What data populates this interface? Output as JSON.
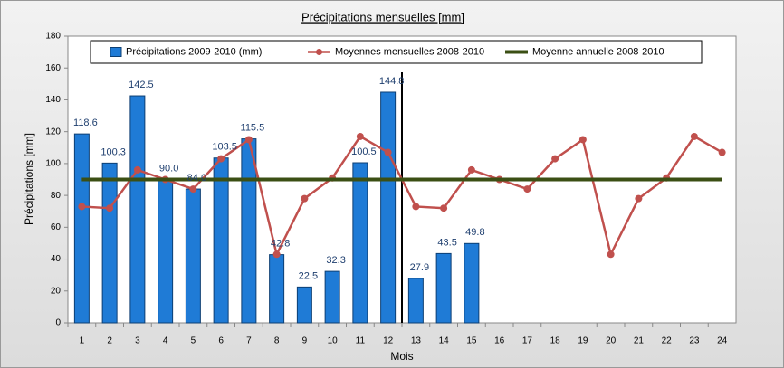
{
  "chart_data": {
    "type": "bar",
    "title": "Précipitations mensuelles [mm]",
    "y_label": "Précipitations [mm]",
    "x_label": "Mois",
    "categories": [
      "1",
      "2",
      "3",
      "4",
      "5",
      "6",
      "7",
      "8",
      "9",
      "10",
      "11",
      "12",
      "13",
      "14",
      "15",
      "16",
      "17",
      "18",
      "19",
      "20",
      "21",
      "22",
      "23",
      "24"
    ],
    "series": [
      {
        "name": "Précipitations 2009-2010 (mm)",
        "type": "bar",
        "color": "#1f7bd6",
        "values": [
          118.6,
          100.3,
          142.5,
          90.0,
          84.0,
          103.5,
          115.5,
          42.8,
          22.5,
          32.3,
          100.5,
          144.8,
          27.9,
          43.5,
          49.8,
          null,
          null,
          null,
          null,
          null,
          null,
          null,
          null,
          null
        ],
        "value_labels": [
          "118.6",
          "100.3",
          "142.5",
          "90.0",
          "84.0",
          "103.5",
          "115.5",
          "42.8",
          "22.5",
          "32.3",
          "100.5",
          "144.8",
          "27.9",
          "43.5",
          "49.8",
          null,
          null,
          null,
          null,
          null,
          null,
          null,
          null,
          null
        ]
      },
      {
        "name": "Moyennes mensuelles 2008-2010",
        "type": "line",
        "color": "#c0504d",
        "values": [
          73,
          72,
          96,
          90,
          84,
          103,
          115,
          43,
          78,
          91,
          117,
          107,
          73,
          72,
          96,
          90,
          84,
          103,
          115,
          43,
          78,
          91,
          117,
          107
        ]
      },
      {
        "name": "Moyenne annuelle 2008-2010",
        "type": "line",
        "color": "#3b4f14",
        "values": [
          90,
          90,
          90,
          90,
          90,
          90,
          90,
          90,
          90,
          90,
          90,
          90,
          90,
          90,
          90,
          90,
          90,
          90,
          90,
          90,
          90,
          90,
          90,
          90
        ]
      }
    ],
    "ylim": [
      0,
      180
    ],
    "yticks": [
      0,
      20,
      40,
      60,
      80,
      100,
      120,
      140,
      160,
      180
    ],
    "grid": false
  }
}
